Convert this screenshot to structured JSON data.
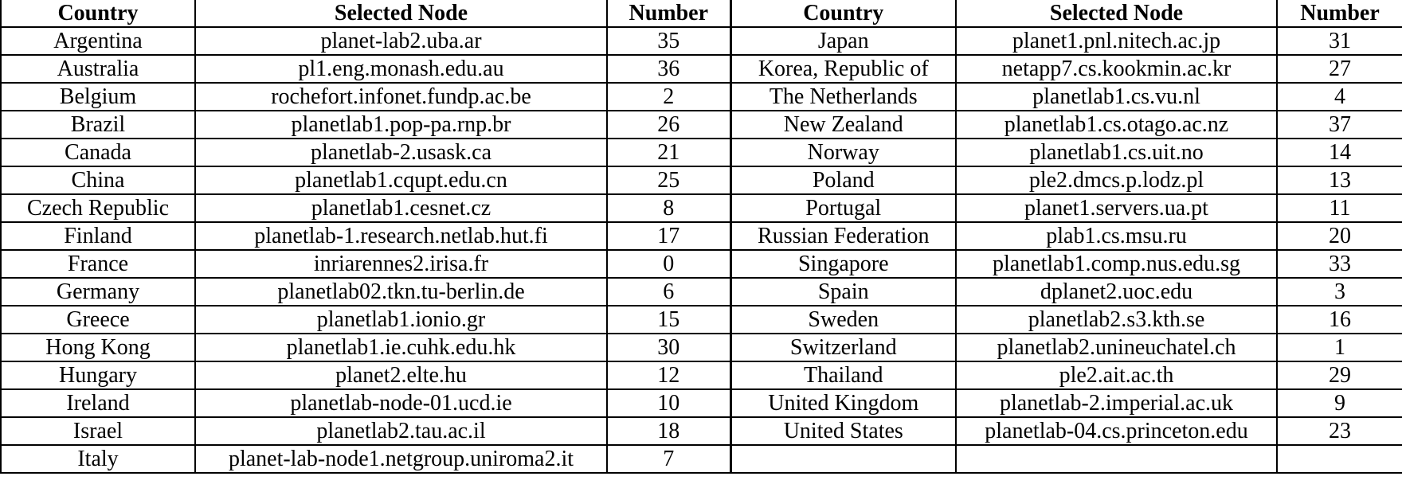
{
  "table": {
    "headers": [
      "Country",
      "Selected Node",
      "Number",
      "Country",
      "Selected Node",
      "Number"
    ],
    "rows": [
      [
        "Argentina",
        "planet-lab2.uba.ar",
        "35",
        "Japan",
        "planet1.pnl.nitech.ac.jp",
        "31"
      ],
      [
        "Australia",
        "pl1.eng.monash.edu.au",
        "36",
        "Korea, Republic of",
        "netapp7.cs.kookmin.ac.kr",
        "27"
      ],
      [
        "Belgium",
        "rochefort.infonet.fundp.ac.be",
        "2",
        "The Netherlands",
        "planetlab1.cs.vu.nl",
        "4"
      ],
      [
        "Brazil",
        "planetlab1.pop-pa.rnp.br",
        "26",
        "New Zealand",
        "planetlab1.cs.otago.ac.nz",
        "37"
      ],
      [
        "Canada",
        "planetlab-2.usask.ca",
        "21",
        "Norway",
        "planetlab1.cs.uit.no",
        "14"
      ],
      [
        "China",
        "planetlab1.cqupt.edu.cn",
        "25",
        "Poland",
        "ple2.dmcs.p.lodz.pl",
        "13"
      ],
      [
        "Czech Republic",
        "planetlab1.cesnet.cz",
        "8",
        "Portugal",
        "planet1.servers.ua.pt",
        "11"
      ],
      [
        "Finland",
        "planetlab-1.research.netlab.hut.fi",
        "17",
        "Russian Federation",
        "plab1.cs.msu.ru",
        "20"
      ],
      [
        "France",
        "inriarennes2.irisa.fr",
        "0",
        "Singapore",
        "planetlab1.comp.nus.edu.sg",
        "33"
      ],
      [
        "Germany",
        "planetlab02.tkn.tu-berlin.de",
        "6",
        "Spain",
        "dplanet2.uoc.edu",
        "3"
      ],
      [
        "Greece",
        "planetlab1.ionio.gr",
        "15",
        "Sweden",
        "planetlab2.s3.kth.se",
        "16"
      ],
      [
        "Hong Kong",
        "planetlab1.ie.cuhk.edu.hk",
        "30",
        "Switzerland",
        "planetlab2.unineuchatel.ch",
        "1"
      ],
      [
        "Hungary",
        "planet2.elte.hu",
        "12",
        "Thailand",
        "ple2.ait.ac.th",
        "29"
      ],
      [
        "Ireland",
        "planetlab-node-01.ucd.ie",
        "10",
        "United Kingdom",
        "planetlab-2.imperial.ac.uk",
        "9"
      ],
      [
        "Israel",
        "planetlab2.tau.ac.il",
        "18",
        "United States",
        "planetlab-04.cs.princeton.edu",
        "23"
      ],
      [
        "Italy",
        "planet-lab-node1.netgroup.uniroma2.it",
        "7",
        "",
        "",
        ""
      ]
    ]
  }
}
